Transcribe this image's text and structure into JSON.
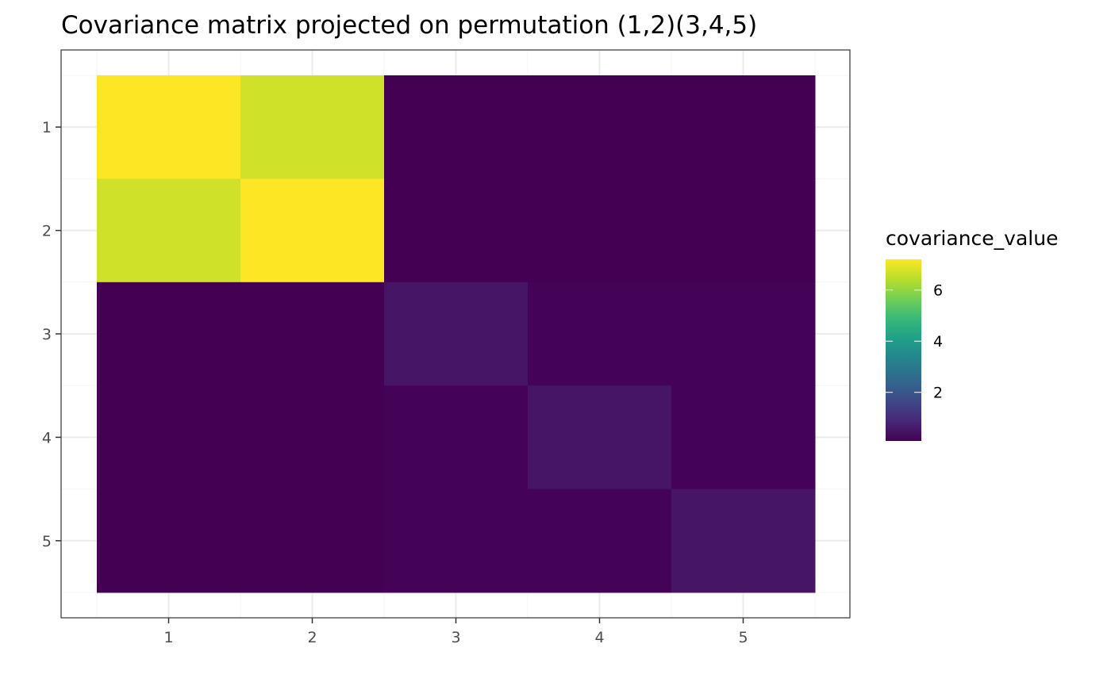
{
  "chart_data": {
    "type": "heatmap",
    "title": "Covariance matrix projected on permutation (1,2)(3,4,5)",
    "xlabel": "",
    "ylabel": "",
    "x_categories": [
      "1",
      "2",
      "3",
      "4",
      "5"
    ],
    "y_categories": [
      "1",
      "2",
      "3",
      "4",
      "5"
    ],
    "y_order": "top-to-bottom",
    "values": [
      [
        7.2,
        6.7,
        0.1,
        0.1,
        0.1
      ],
      [
        6.7,
        7.2,
        0.1,
        0.1,
        0.1
      ],
      [
        0.1,
        0.1,
        0.5,
        0.15,
        0.15
      ],
      [
        0.1,
        0.1,
        0.15,
        0.5,
        0.15
      ],
      [
        0.1,
        0.1,
        0.15,
        0.15,
        0.5
      ]
    ],
    "color_scale": {
      "name": "viridis",
      "min": 0.1,
      "max": 7.2,
      "colors": [
        "#440154",
        "#482878",
        "#3e4a89",
        "#31688e",
        "#26828e",
        "#1f9e89",
        "#35b779",
        "#6ece58",
        "#b5de2b",
        "#fde725"
      ]
    },
    "legend": {
      "title": "covariance_value",
      "ticks": [
        2,
        4,
        6
      ],
      "position": "right"
    },
    "grid": true,
    "colors": {
      "panel_border": "#333333",
      "grid_major": "#ebebeb",
      "grid_minor": "#f4f4f4",
      "tick_text": "#4d4d4d"
    }
  }
}
